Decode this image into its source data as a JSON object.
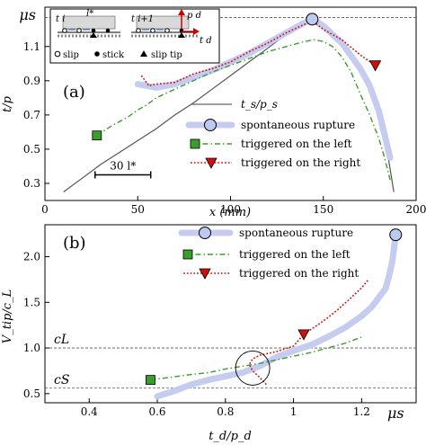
{
  "chart_data": [
    {
      "type": "line",
      "panel_label": "(a)",
      "xlabel": "x (mm)",
      "ylabel": "t/p",
      "xlim": [
        0,
        200
      ],
      "ylim": [
        0.2,
        1.33
      ],
      "xticks": [
        0,
        50,
        100,
        150,
        200
      ],
      "yticks": [
        0.3,
        0.5,
        0.7,
        0.9,
        1.1
      ],
      "ytick_labels": [
        "0.3",
        "0.5",
        "0.7",
        "0.9",
        "1.1"
      ],
      "y_extra_label": {
        "text": "μs",
        "value": 1.27
      },
      "reference_lines": [
        {
          "value": 1.27
        }
      ],
      "scale_bar": {
        "label": "30 l*",
        "x": [
          27,
          57
        ],
        "y": 0.35
      },
      "inset": {
        "labels": [
          "t i",
          "l*",
          "t i+1",
          "p d",
          "t d"
        ],
        "legend": [
          "slip",
          "stick",
          "slip tip"
        ]
      },
      "legend_position": "lower-right",
      "series": [
        {
          "name": "t_s/p_s",
          "style": "solid-gray",
          "x": [
            10,
            20,
            30,
            40,
            50,
            60,
            70,
            80,
            90,
            100,
            110,
            120,
            130,
            140,
            145,
            150,
            160,
            170,
            175,
            180,
            185,
            188
          ],
          "y": [
            0.25,
            0.33,
            0.41,
            0.48,
            0.55,
            0.62,
            0.7,
            0.77,
            0.85,
            0.93,
            1.01,
            1.09,
            1.17,
            1.24,
            1.26,
            1.23,
            1.14,
            0.98,
            0.86,
            0.68,
            0.45,
            0.25
          ]
        },
        {
          "name": "spontaneous rupture",
          "style": "thick-light-blue",
          "x": [
            50,
            60,
            70,
            80,
            90,
            100,
            110,
            120,
            130,
            140,
            144,
            150,
            160,
            170,
            175,
            180,
            186
          ],
          "y": [
            0.88,
            0.86,
            0.88,
            0.92,
            0.96,
            1.01,
            1.06,
            1.12,
            1.18,
            1.24,
            1.26,
            1.22,
            1.12,
            0.97,
            0.87,
            0.72,
            0.45
          ],
          "marker": {
            "shape": "circle",
            "x": 144,
            "y": 1.26
          }
        },
        {
          "name": "triggered on the left",
          "style": "dash-dot-green",
          "x": [
            28,
            35,
            40,
            45,
            50,
            55,
            60,
            70,
            80,
            90,
            100,
            110,
            120,
            130,
            140,
            145,
            150,
            155,
            160,
            165,
            170,
            175,
            180,
            183,
            186
          ],
          "y": [
            0.58,
            0.63,
            0.66,
            0.69,
            0.73,
            0.76,
            0.8,
            0.85,
            0.9,
            0.95,
            0.99,
            1.03,
            1.07,
            1.1,
            1.13,
            1.14,
            1.13,
            1.1,
            1.04,
            0.95,
            0.82,
            0.7,
            0.56,
            0.45,
            0.32
          ],
          "marker": {
            "shape": "square",
            "x": 28,
            "y": 0.58
          }
        },
        {
          "name": "triggered on the right",
          "style": "dotted-red",
          "x": [
            52,
            56,
            60,
            70,
            80,
            90,
            100,
            110,
            120,
            130,
            140,
            144,
            150,
            160,
            170,
            178
          ],
          "y": [
            0.93,
            0.87,
            0.88,
            0.89,
            0.94,
            0.97,
            1.01,
            1.07,
            1.12,
            1.18,
            1.23,
            1.25,
            1.2,
            1.14,
            1.05,
            0.99
          ],
          "marker": {
            "shape": "triangle-down",
            "x": 178,
            "y": 0.99
          }
        }
      ]
    },
    {
      "type": "line",
      "panel_label": "(b)",
      "xlabel": "t_d/p_d",
      "ylabel": "V_tip/c_L",
      "xlim": [
        0.27,
        1.36
      ],
      "ylim": [
        0.4,
        2.35
      ],
      "xticks": [
        0.4,
        0.6,
        0.8,
        1.0,
        1.2
      ],
      "xtick_labels": [
        "0.4",
        "0.6",
        "0.8",
        "1",
        "1.2"
      ],
      "x_extra_label": {
        "text": "μs",
        "value": 1.3
      },
      "yticks": [
        0.5,
        1.0,
        1.5,
        2.0
      ],
      "ytick_labels": [
        "0.5",
        "1.0",
        "1.5",
        "2.0"
      ],
      "reference_lines": [
        {
          "label": "cL",
          "value": 1.0
        },
        {
          "label": "cS",
          "value": 0.56
        }
      ],
      "circle_annotation": {
        "x": 0.88,
        "y": 0.78
      },
      "legend_position": "top-center",
      "series": [
        {
          "name": "spontaneous rupture",
          "style": "thick-light-blue",
          "x": [
            0.6,
            0.65,
            0.7,
            0.75,
            0.8,
            0.85,
            0.9,
            0.95,
            1.0,
            1.05,
            1.1,
            1.15,
            1.2,
            1.23,
            1.25,
            1.27,
            1.28,
            1.29,
            1.3
          ],
          "y": [
            0.47,
            0.53,
            0.6,
            0.65,
            0.69,
            0.73,
            0.8,
            0.9,
            0.97,
            1.03,
            1.12,
            1.22,
            1.35,
            1.45,
            1.55,
            1.65,
            1.78,
            1.95,
            2.24
          ],
          "marker": {
            "shape": "circle",
            "x": 1.3,
            "y": 2.24
          }
        },
        {
          "name": "triggered on the left",
          "style": "dash-dot-green",
          "x": [
            0.58,
            0.62,
            0.66,
            0.7,
            0.75,
            0.8,
            0.85,
            0.9,
            0.95,
            1.0,
            1.05,
            1.1,
            1.15,
            1.2
          ],
          "y": [
            0.65,
            0.67,
            0.69,
            0.71,
            0.73,
            0.77,
            0.8,
            0.83,
            0.87,
            0.91,
            0.95,
            1.0,
            1.05,
            1.12
          ],
          "marker": {
            "shape": "square",
            "x": 0.58,
            "y": 0.65
          }
        },
        {
          "name": "triggered on the right",
          "style": "dotted-red",
          "x": [
            0.92,
            0.9,
            0.88,
            0.87,
            0.88,
            0.9,
            0.95,
            1.0,
            1.03,
            1.07,
            1.1,
            1.13,
            1.16,
            1.2,
            1.22
          ],
          "y": [
            0.6,
            0.68,
            0.75,
            0.82,
            0.88,
            0.92,
            0.96,
            1.02,
            1.15,
            1.25,
            1.33,
            1.42,
            1.52,
            1.66,
            1.75
          ],
          "marker": {
            "shape": "triangle-down",
            "x": 1.03,
            "y": 1.15
          }
        }
      ]
    }
  ]
}
